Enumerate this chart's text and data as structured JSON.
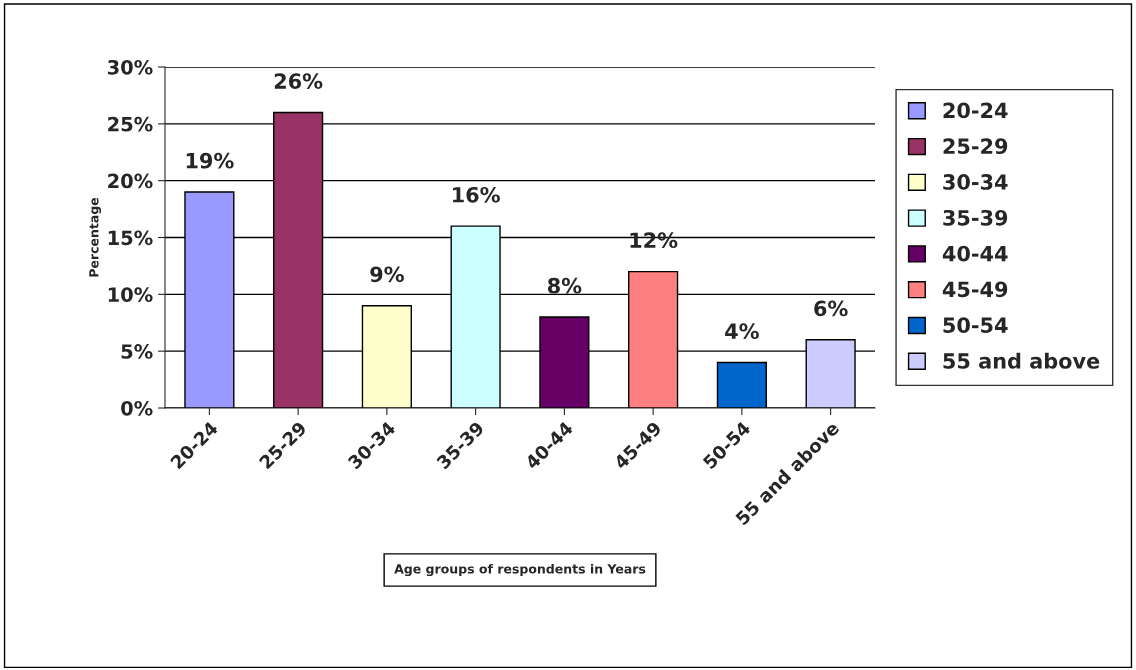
{
  "chart_data": {
    "type": "bar",
    "xlabel": "Age groups of respondents in Years",
    "ylabel": "Percentage",
    "categories": [
      "20-24",
      "25-29",
      "30-34",
      "35-39",
      "40-44",
      "45-49",
      "50-54",
      "55 and above"
    ],
    "series": [
      {
        "name": "20-24",
        "color": "#9999ff",
        "values": [
          19,
          null,
          null,
          null,
          null,
          null,
          null,
          null
        ],
        "value_labels": [
          "19%",
          null,
          null,
          null,
          null,
          null,
          null,
          null
        ]
      },
      {
        "name": "25-29",
        "color": "#993366",
        "values": [
          null,
          26,
          null,
          null,
          null,
          null,
          null,
          null
        ],
        "value_labels": [
          null,
          "26%",
          null,
          null,
          null,
          null,
          null,
          null
        ]
      },
      {
        "name": "30-34",
        "color": "#ffffcc",
        "values": [
          null,
          null,
          9,
          null,
          null,
          null,
          null,
          null
        ],
        "value_labels": [
          null,
          null,
          "9%",
          null,
          null,
          null,
          null,
          null
        ]
      },
      {
        "name": "35-39",
        "color": "#ccffff",
        "values": [
          null,
          null,
          null,
          16,
          null,
          null,
          null,
          null
        ],
        "value_labels": [
          null,
          null,
          null,
          "16%",
          null,
          null,
          null,
          null
        ]
      },
      {
        "name": "40-44",
        "color": "#660066",
        "values": [
          null,
          null,
          null,
          null,
          8,
          null,
          null,
          null
        ],
        "value_labels": [
          null,
          null,
          null,
          null,
          "8%",
          null,
          null,
          null
        ]
      },
      {
        "name": "45-49",
        "color": "#ff8080",
        "values": [
          null,
          null,
          null,
          null,
          null,
          12,
          null,
          null
        ],
        "value_labels": [
          null,
          null,
          null,
          null,
          null,
          "12%",
          null,
          null
        ]
      },
      {
        "name": "50-54",
        "color": "#0066cc",
        "values": [
          null,
          null,
          null,
          null,
          null,
          null,
          4,
          null
        ],
        "value_labels": [
          null,
          null,
          null,
          null,
          null,
          null,
          "4%",
          null
        ]
      },
      {
        "name": "55 and above",
        "color": "#ccccff",
        "values": [
          null,
          null,
          null,
          null,
          null,
          null,
          null,
          6
        ],
        "value_labels": [
          null,
          null,
          null,
          null,
          null,
          null,
          null,
          "6%"
        ]
      }
    ],
    "ylim": [
      0,
      30
    ],
    "yticks": [
      {
        "value": 0,
        "label": "0%"
      },
      {
        "value": 5,
        "label": "5%"
      },
      {
        "value": 10,
        "label": "10%"
      },
      {
        "value": 15,
        "label": "15%"
      },
      {
        "value": 20,
        "label": "20%"
      },
      {
        "value": 25,
        "label": "25%"
      },
      {
        "value": 30,
        "label": "30%"
      }
    ],
    "grid": "y",
    "legend": "right"
  }
}
